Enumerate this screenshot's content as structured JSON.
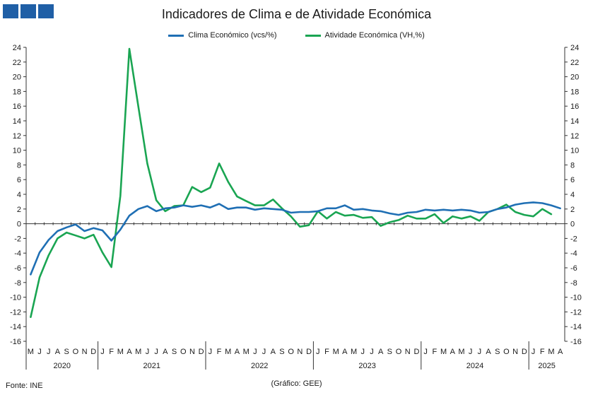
{
  "header": {
    "title": "Indicadores de Clima e de Atividade Económica"
  },
  "legend": {
    "series_1": "Clima Económico (vcs/%)",
    "series_2": "Atividade Económica (VH,%)"
  },
  "footer": {
    "source": "Fonte: INE",
    "credit": "(Gráfico: GEE)"
  },
  "colors": {
    "clima": "#1f6fb4",
    "atividade": "#1aa552",
    "logo": "#1f5fa6"
  },
  "chart_data": {
    "type": "line",
    "ylim": [
      -16,
      24
    ],
    "yticks": [
      24,
      22,
      20,
      18,
      16,
      14,
      12,
      10,
      8,
      6,
      4,
      2,
      0,
      -2,
      -4,
      -6,
      -8,
      -10,
      -12,
      -14,
      -16
    ],
    "grid": false,
    "legend_position": "top",
    "month_labels": [
      "M",
      "J",
      "J",
      "A",
      "S",
      "O",
      "N",
      "D",
      "J",
      "F",
      "M",
      "A",
      "M",
      "J",
      "J",
      "A",
      "S",
      "O",
      "N",
      "D",
      "J",
      "F",
      "M",
      "A",
      "M",
      "J",
      "J",
      "A",
      "S",
      "O",
      "N",
      "D",
      "J",
      "F",
      "M",
      "A",
      "M",
      "J",
      "J",
      "A",
      "S",
      "O",
      "N",
      "D",
      "J",
      "F",
      "M",
      "A",
      "M",
      "J",
      "J",
      "A",
      "S",
      "O",
      "N",
      "D",
      "J",
      "F",
      "M",
      "A"
    ],
    "year_groups": [
      {
        "label": "2020",
        "start": 0,
        "end": 7
      },
      {
        "label": "2021",
        "start": 8,
        "end": 19
      },
      {
        "label": "2022",
        "start": 20,
        "end": 31
      },
      {
        "label": "2023",
        "start": 32,
        "end": 43
      },
      {
        "label": "2024",
        "start": 44,
        "end": 55
      },
      {
        "label": "2025",
        "start": 56,
        "end": 59
      }
    ],
    "series": [
      {
        "name": "Clima Económico (vcs/%)",
        "values": [
          -6.9,
          -3.9,
          -2.2,
          -1.0,
          -0.5,
          -0.1,
          -1.0,
          -0.6,
          -0.9,
          -2.3,
          -0.8,
          1.1,
          2.0,
          2.4,
          1.7,
          2.1,
          2.2,
          2.5,
          2.3,
          2.5,
          2.2,
          2.7,
          2.0,
          2.2,
          2.2,
          1.9,
          2.1,
          2.0,
          1.9,
          1.5,
          1.6,
          1.6,
          1.7,
          2.1,
          2.1,
          2.5,
          1.9,
          2.0,
          1.8,
          1.7,
          1.4,
          1.2,
          1.5,
          1.6,
          1.9,
          1.8,
          1.9,
          1.8,
          1.9,
          1.8,
          1.5,
          1.6,
          2.0,
          2.2,
          2.6,
          2.8,
          2.9,
          2.8,
          2.5,
          2.1
        ]
      },
      {
        "name": "Atividade Económica (VH,%)",
        "values": [
          -12.7,
          -7.3,
          -4.3,
          -2.0,
          -1.2,
          -1.6,
          -2.0,
          -1.5,
          -3.9,
          -5.9,
          3.8,
          23.8,
          15.9,
          8.2,
          3.2,
          1.7,
          2.4,
          2.5,
          5.0,
          4.3,
          4.9,
          8.2,
          5.7,
          3.7,
          3.1,
          2.5,
          2.5,
          3.3,
          2.1,
          1.0,
          -0.4,
          -0.2,
          1.7,
          0.7,
          1.6,
          1.1,
          1.2,
          0.8,
          0.9,
          -0.3,
          0.2,
          0.5,
          1.1,
          0.7,
          0.7,
          1.3,
          0.1,
          1.0,
          0.7,
          1.0,
          0.4,
          1.6,
          2.0,
          2.6,
          1.6,
          1.2,
          1.0,
          2.0,
          1.3,
          null
        ]
      }
    ]
  }
}
